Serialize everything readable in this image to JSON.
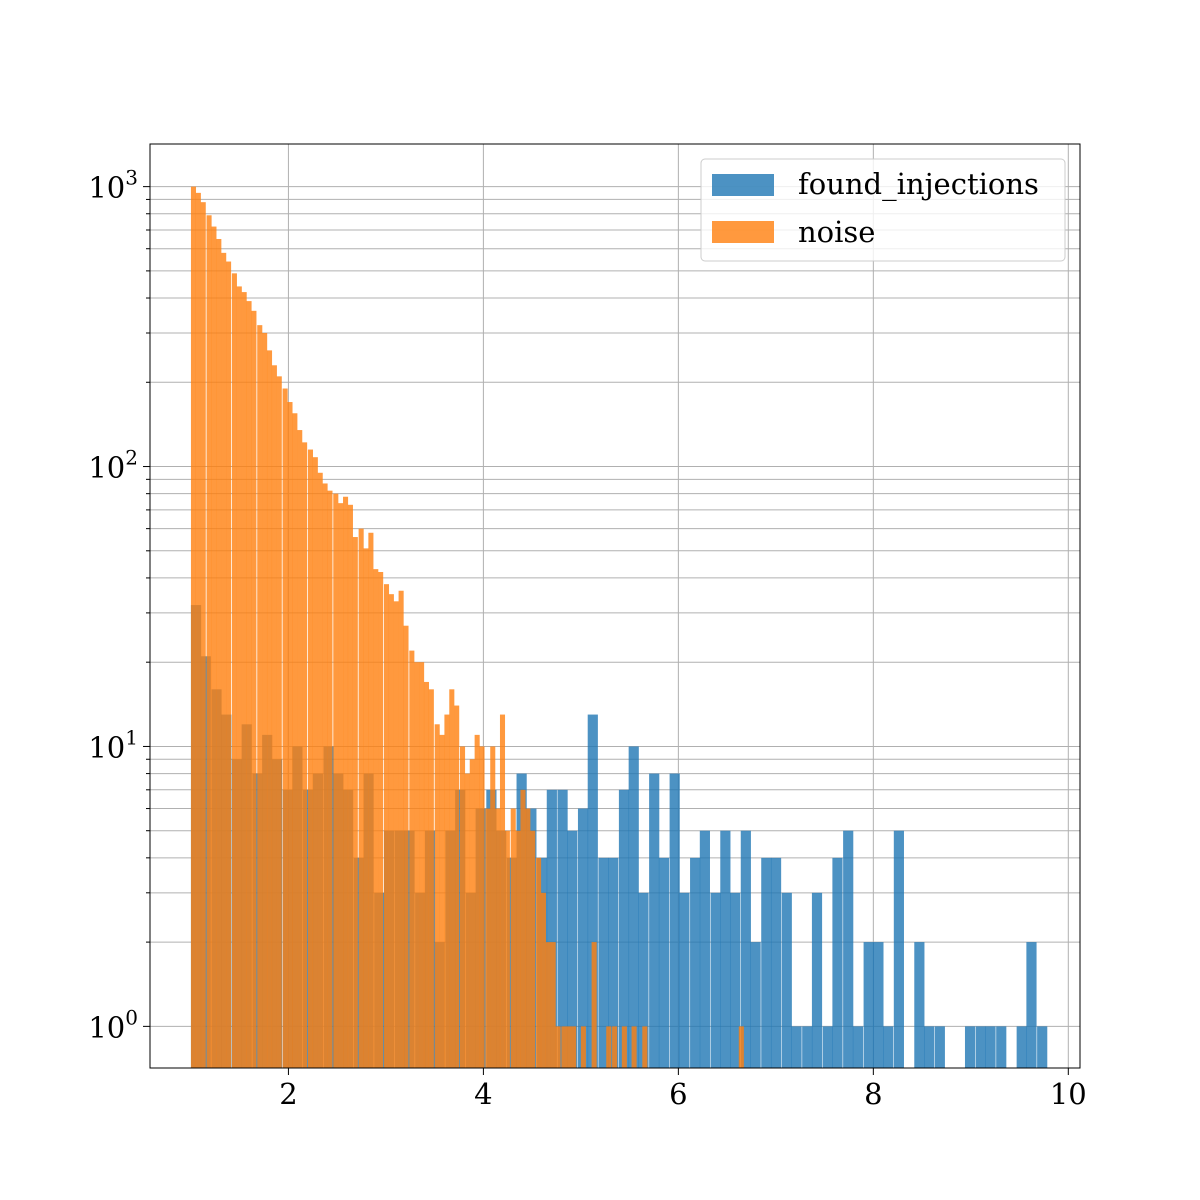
{
  "chart_data": {
    "type": "bar",
    "title": "",
    "xlabel": "",
    "ylabel": "",
    "xlim": [
      0.58,
      10.12
    ],
    "ylim": [
      0.71,
      1420
    ],
    "yscale": "log",
    "grid": true,
    "xticks": [
      2,
      4,
      6,
      8,
      10
    ],
    "xtick_labels": [
      "2",
      "4",
      "6",
      "8",
      "10"
    ],
    "yticks": [
      1,
      10,
      100,
      1000
    ],
    "ytick_labels": [
      {
        "base": "10",
        "exp": "0"
      },
      {
        "base": "10",
        "exp": "1"
      },
      {
        "base": "10",
        "exp": "2"
      },
      {
        "base": "10",
        "exp": "3"
      }
    ],
    "legend": {
      "position": "top-right",
      "entries": [
        {
          "label": "found_injections",
          "color": "#1f77b4"
        },
        {
          "label": "noise",
          "color": "#ff7f0e"
        }
      ]
    },
    "series": [
      {
        "name": "found_injections",
        "color": "#1f77b4",
        "bin_width": 0.1044,
        "bins": [
          [
            1.0,
            32
          ],
          [
            1.1,
            21
          ],
          [
            1.21,
            16
          ],
          [
            1.31,
            13
          ],
          [
            1.42,
            9
          ],
          [
            1.52,
            12
          ],
          [
            1.63,
            8
          ],
          [
            1.73,
            11
          ],
          [
            1.83,
            9
          ],
          [
            1.94,
            7
          ],
          [
            2.04,
            10
          ],
          [
            2.15,
            7
          ],
          [
            2.25,
            8
          ],
          [
            2.36,
            10
          ],
          [
            2.46,
            8
          ],
          [
            2.56,
            7
          ],
          [
            2.67,
            4
          ],
          [
            2.77,
            8
          ],
          [
            2.88,
            3
          ],
          [
            2.98,
            5
          ],
          [
            3.09,
            5
          ],
          [
            3.19,
            5
          ],
          [
            3.3,
            3
          ],
          [
            3.4,
            5
          ],
          [
            3.5,
            2
          ],
          [
            3.61,
            5
          ],
          [
            3.71,
            7
          ],
          [
            3.82,
            3
          ],
          [
            3.92,
            6
          ],
          [
            4.03,
            7
          ],
          [
            4.13,
            5
          ],
          [
            4.24,
            4
          ],
          [
            4.34,
            8
          ],
          [
            4.44,
            6
          ],
          [
            4.55,
            4
          ],
          [
            4.65,
            7
          ],
          [
            4.76,
            7
          ],
          [
            4.86,
            5
          ],
          [
            4.97,
            6
          ],
          [
            5.07,
            13
          ],
          [
            5.18,
            4
          ],
          [
            5.28,
            4
          ],
          [
            5.39,
            7
          ],
          [
            5.49,
            10
          ],
          [
            5.59,
            3
          ],
          [
            5.7,
            8
          ],
          [
            5.8,
            4
          ],
          [
            5.91,
            8
          ],
          [
            6.01,
            3
          ],
          [
            6.12,
            4
          ],
          [
            6.22,
            5
          ],
          [
            6.33,
            3
          ],
          [
            6.43,
            5
          ],
          [
            6.53,
            3
          ],
          [
            6.64,
            5
          ],
          [
            6.74,
            2
          ],
          [
            6.85,
            4
          ],
          [
            6.95,
            4
          ],
          [
            7.06,
            3
          ],
          [
            7.16,
            1
          ],
          [
            7.27,
            1
          ],
          [
            7.37,
            3
          ],
          [
            7.48,
            1
          ],
          [
            7.58,
            4
          ],
          [
            7.69,
            5
          ],
          [
            7.79,
            1
          ],
          [
            7.9,
            2
          ],
          [
            8.0,
            2
          ],
          [
            8.1,
            1
          ],
          [
            8.21,
            5
          ],
          [
            8.42,
            2
          ],
          [
            8.52,
            1
          ],
          [
            8.63,
            1
          ],
          [
            8.94,
            1
          ],
          [
            9.05,
            1
          ],
          [
            9.15,
            1
          ],
          [
            9.26,
            1
          ],
          [
            9.47,
            1
          ],
          [
            9.57,
            2
          ],
          [
            9.68,
            1
          ]
        ]
      },
      {
        "name": "noise",
        "color": "#ff7f0e",
        "bin_width": 0.052,
        "bins": [
          [
            1.0,
            1000
          ],
          [
            1.05,
            950
          ],
          [
            1.1,
            880
          ],
          [
            1.16,
            790
          ],
          [
            1.21,
            720
          ],
          [
            1.26,
            650
          ],
          [
            1.31,
            580
          ],
          [
            1.36,
            540
          ],
          [
            1.42,
            490
          ],
          [
            1.47,
            440
          ],
          [
            1.52,
            420
          ],
          [
            1.57,
            390
          ],
          [
            1.62,
            360
          ],
          [
            1.68,
            320
          ],
          [
            1.73,
            300
          ],
          [
            1.78,
            260
          ],
          [
            1.83,
            230
          ],
          [
            1.88,
            210
          ],
          [
            1.94,
            190
          ],
          [
            1.99,
            170
          ],
          [
            2.04,
            155
          ],
          [
            2.09,
            135
          ],
          [
            2.14,
            122
          ],
          [
            2.2,
            115
          ],
          [
            2.25,
            108
          ],
          [
            2.3,
            95
          ],
          [
            2.35,
            87
          ],
          [
            2.4,
            82
          ],
          [
            2.46,
            80
          ],
          [
            2.51,
            74
          ],
          [
            2.56,
            78
          ],
          [
            2.61,
            73
          ],
          [
            2.66,
            56
          ],
          [
            2.72,
            60
          ],
          [
            2.77,
            51
          ],
          [
            2.82,
            58
          ],
          [
            2.87,
            43
          ],
          [
            2.92,
            42
          ],
          [
            2.98,
            38
          ],
          [
            3.03,
            35
          ],
          [
            3.08,
            33
          ],
          [
            3.13,
            36
          ],
          [
            3.18,
            27
          ],
          [
            3.24,
            22
          ],
          [
            3.29,
            20
          ],
          [
            3.34,
            20
          ],
          [
            3.39,
            17
          ],
          [
            3.44,
            16
          ],
          [
            3.5,
            12
          ],
          [
            3.55,
            11
          ],
          [
            3.6,
            13
          ],
          [
            3.65,
            16
          ],
          [
            3.7,
            14
          ],
          [
            3.76,
            10
          ],
          [
            3.81,
            8
          ],
          [
            3.86,
            9
          ],
          [
            3.91,
            11
          ],
          [
            3.96,
            10
          ],
          [
            4.02,
            6
          ],
          [
            4.07,
            10
          ],
          [
            4.12,
            6
          ],
          [
            4.17,
            13
          ],
          [
            4.22,
            5
          ],
          [
            4.28,
            6
          ],
          [
            4.33,
            5
          ],
          [
            4.38,
            7
          ],
          [
            4.43,
            6
          ],
          [
            4.48,
            5
          ],
          [
            4.54,
            4
          ],
          [
            4.59,
            3
          ],
          [
            4.64,
            2
          ],
          [
            4.69,
            2
          ],
          [
            4.74,
            1
          ],
          [
            4.8,
            1
          ],
          [
            4.85,
            1
          ],
          [
            4.9,
            1
          ],
          [
            4.95,
            0
          ],
          [
            5.0,
            1
          ],
          [
            5.06,
            0
          ],
          [
            5.11,
            2
          ],
          [
            5.16,
            0
          ],
          [
            5.21,
            0
          ],
          [
            5.26,
            1
          ],
          [
            5.32,
            1
          ],
          [
            5.37,
            0
          ],
          [
            5.42,
            1
          ],
          [
            5.47,
            0
          ],
          [
            5.52,
            1
          ],
          [
            5.58,
            0
          ],
          [
            5.63,
            1
          ],
          [
            6.62,
            1
          ]
        ]
      }
    ]
  }
}
